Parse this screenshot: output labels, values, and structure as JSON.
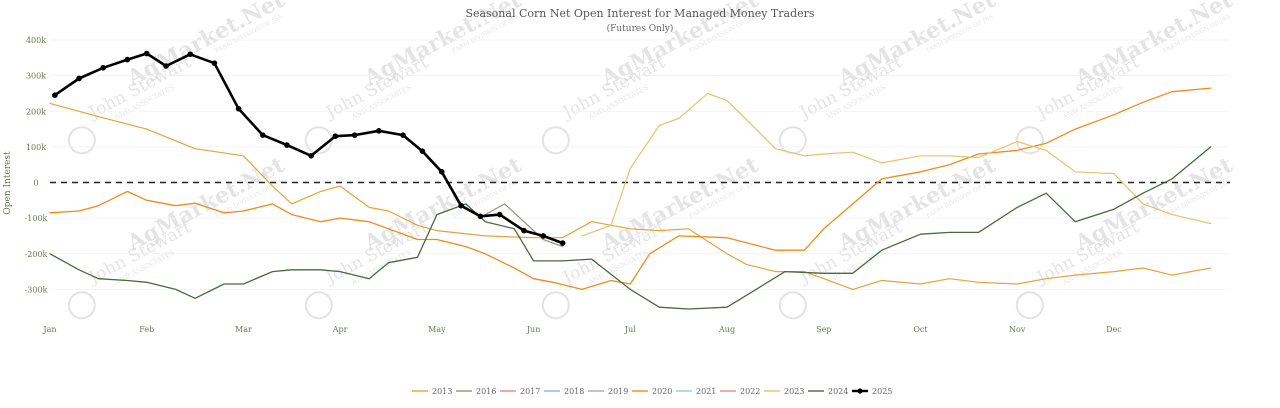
{
  "chart_data": {
    "type": "line",
    "title": "Seasonal Corn Net Open Interest for Managed Money Traders",
    "subtitle": "(Futures Only)",
    "ylabel": "Open Interest",
    "xlabel": "",
    "ylim": [
      -400000,
      400000
    ],
    "yticks": [
      {
        "v": 400000,
        "label": "400k"
      },
      {
        "v": 300000,
        "label": "300k"
      },
      {
        "v": 200000,
        "label": "200k"
      },
      {
        "v": 100000,
        "label": "100k"
      },
      {
        "v": 0,
        "label": "0"
      },
      {
        "v": -100000,
        "label": "-100k"
      },
      {
        "v": -200000,
        "label": "-200k"
      },
      {
        "v": -300000,
        "label": "-300k"
      }
    ],
    "xlim": [
      0,
      12.2
    ],
    "months": [
      "Jan",
      "Feb",
      "Mar",
      "Apr",
      "May",
      "Jun",
      "Jul",
      "Aug",
      "Sep",
      "Oct",
      "Nov",
      "Dec"
    ],
    "zero_line": "dashed",
    "watermark": {
      "brand": "AgMarket.Net",
      "company": "John Stewart",
      "sub": "AND ASSOCIATES",
      "tag": "FARM DIVISION OF JSA",
      "logo": "JSA"
    },
    "legend": [
      "2013",
      "2016",
      "2017",
      "2018",
      "2019",
      "2020",
      "2021",
      "2022",
      "2023",
      "2024",
      "2025"
    ],
    "series": [
      {
        "name": "2013",
        "color": "#e8a33a",
        "width": 1.2,
        "markers": false,
        "x": [
          0,
          0.5,
          1,
          1.5,
          2,
          2.3,
          2.5,
          2.8,
          3,
          3.3,
          3.5,
          3.8,
          4,
          4.5,
          5,
          5.3,
          5.6,
          6,
          6.3,
          6.6,
          7,
          7.2,
          7.5,
          7.8,
          8,
          8.3,
          8.6,
          9,
          9.3,
          9.6,
          10,
          10.3,
          10.6,
          11,
          11.3,
          11.6,
          12
        ],
        "y": [
          222000,
          185000,
          150000,
          95000,
          75000,
          -10000,
          -60000,
          -25000,
          -10000,
          -70000,
          -80000,
          -120000,
          -135000,
          -150000,
          -155000,
          -155000,
          -110000,
          -130000,
          -135000,
          -130000,
          -200000,
          -230000,
          -250000,
          -250000,
          -270000,
          -300000,
          -275000,
          -285000,
          -270000,
          -280000,
          -285000,
          -270000,
          -260000,
          -250000,
          -240000,
          -260000,
          -240000
        ]
      },
      {
        "name": "2016",
        "color": "#8a9a7a",
        "width": 1.2,
        "markers": false,
        "x": [
          4.5,
          4.7,
          4.9,
          5.1,
          5.3
        ],
        "y": [
          -90000,
          -60000,
          -110000,
          -160000,
          -180000
        ]
      },
      {
        "name": "2020",
        "color": "#f28a1a",
        "width": 1.3,
        "markers": false,
        "x": [
          0,
          0.3,
          0.5,
          0.8,
          1,
          1.3,
          1.5,
          1.8,
          2,
          2.3,
          2.5,
          2.8,
          3,
          3.3,
          3.5,
          3.8,
          4,
          4.3,
          4.5,
          4.8,
          5,
          5.2,
          5.5,
          5.8,
          6,
          6.2,
          6.5,
          7,
          7.5,
          7.8,
          8,
          8.3,
          8.6,
          9,
          9.3,
          9.6,
          10,
          10.3,
          10.6,
          11,
          11.3,
          11.6,
          12
        ],
        "y": [
          -85000,
          -80000,
          -65000,
          -25000,
          -50000,
          -65000,
          -58000,
          -85000,
          -80000,
          -60000,
          -90000,
          -110000,
          -100000,
          -110000,
          -130000,
          -160000,
          -160000,
          -180000,
          -200000,
          -240000,
          -270000,
          -280000,
          -300000,
          -275000,
          -285000,
          -200000,
          -150000,
          -155000,
          -190000,
          -190000,
          -130000,
          -60000,
          10000,
          30000,
          50000,
          80000,
          90000,
          110000,
          150000,
          190000,
          225000,
          255000,
          265000
        ]
      },
      {
        "name": "2023",
        "color": "#e8c26a",
        "width": 1.2,
        "markers": false,
        "x": [
          5.5,
          5.8,
          6,
          6.3,
          6.5,
          6.8,
          7,
          7.3,
          7.5,
          7.8,
          8,
          8.3,
          8.6,
          9,
          9.3,
          9.6,
          10,
          10.3,
          10.6,
          11,
          11.3,
          11.6,
          12
        ],
        "y": [
          -150000,
          -120000,
          40000,
          160000,
          180000,
          250000,
          230000,
          150000,
          95000,
          75000,
          80000,
          85000,
          55000,
          75000,
          75000,
          70000,
          115000,
          90000,
          30000,
          25000,
          -60000,
          -90000,
          -115000
        ]
      },
      {
        "name": "2024",
        "color": "#4a6a3a",
        "width": 1.3,
        "markers": false,
        "x": [
          0,
          0.3,
          0.5,
          0.8,
          1,
          1.3,
          1.5,
          1.8,
          2,
          2.3,
          2.5,
          2.8,
          3,
          3.3,
          3.5,
          3.8,
          4,
          4.3,
          4.5,
          4.8,
          5,
          5.3,
          5.6,
          6,
          6.3,
          6.6,
          7,
          7.3,
          7.6,
          8,
          8.3,
          8.6,
          9,
          9.3,
          9.6,
          10,
          10.3,
          10.6,
          11,
          11.3,
          11.6,
          12
        ],
        "y": [
          -200000,
          -245000,
          -270000,
          -275000,
          -280000,
          -300000,
          -325000,
          -285000,
          -285000,
          -250000,
          -245000,
          -245000,
          -250000,
          -270000,
          -225000,
          -210000,
          -90000,
          -60000,
          -110000,
          -130000,
          -220000,
          -220000,
          -215000,
          -300000,
          -350000,
          -355000,
          -350000,
          -300000,
          -250000,
          -255000,
          -255000,
          -190000,
          -145000,
          -140000,
          -140000,
          -70000,
          -30000,
          -110000,
          -75000,
          -30000,
          10000,
          100000
        ]
      },
      {
        "name": "2025",
        "color": "#000000",
        "width": 2.6,
        "markers": true,
        "x": [
          0.05,
          0.3,
          0.55,
          0.8,
          1,
          1.2,
          1.45,
          1.7,
          1.95,
          2.2,
          2.45,
          2.7,
          2.95,
          3.15,
          3.4,
          3.65,
          3.85,
          4.05,
          4.25,
          4.45,
          4.65,
          4.9,
          5.1,
          5.3
        ],
        "y": [
          245000,
          292000,
          322000,
          345000,
          362000,
          327000,
          360000,
          335000,
          207000,
          133000,
          105000,
          75000,
          130000,
          133000,
          145000,
          133000,
          88000,
          30000,
          -65000,
          -95000,
          -90000,
          -135000,
          -150000,
          -170000
        ]
      }
    ]
  }
}
